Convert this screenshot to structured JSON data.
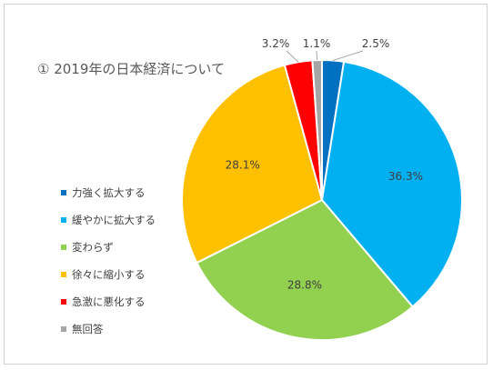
{
  "chart_data": {
    "type": "pie",
    "title": "① 2019年の日本経済について",
    "legend_position": "left",
    "start_angle_deg": 0,
    "direction": "clockwise",
    "slices": [
      {
        "label": "力強く拡大する",
        "value": 2.5,
        "value_label": "2.5%",
        "color": "#0070C0"
      },
      {
        "label": "緩やかに拡大する",
        "value": 36.3,
        "value_label": "36.3%",
        "color": "#00B0F0"
      },
      {
        "label": "変わらず",
        "value": 28.8,
        "value_label": "28.8%",
        "color": "#92D050"
      },
      {
        "label": "徐々に縮小する",
        "value": 28.1,
        "value_label": "28.1%",
        "color": "#FFC000"
      },
      {
        "label": "急激に悪化する",
        "value": 3.2,
        "value_label": "3.2%",
        "color": "#FF0000"
      },
      {
        "label": "無回答",
        "value": 1.1,
        "value_label": "1.1%",
        "color": "#A5A5A5"
      }
    ]
  }
}
